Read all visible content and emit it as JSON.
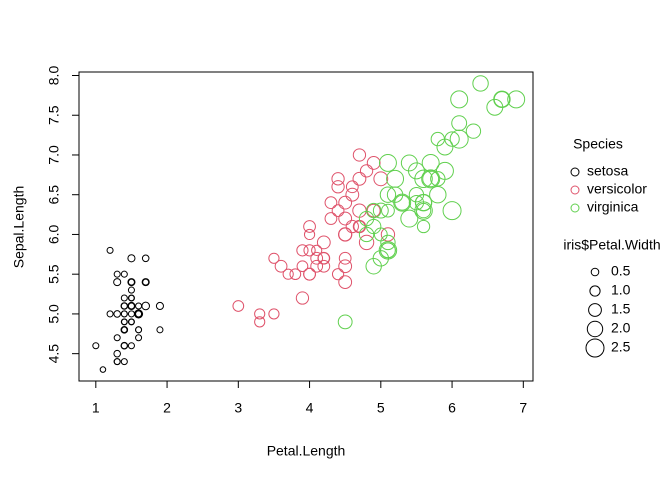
{
  "chart_data": {
    "type": "scatter",
    "x_label": "Petal.Length",
    "y_label": "Sepal.Length",
    "xlim": [
      0.764,
      7.136
    ],
    "ylim": [
      4.156,
      8.044
    ],
    "xticks": [
      1,
      2,
      3,
      4,
      5,
      6,
      7
    ],
    "yticks": [
      4.5,
      {
        "value": 5,
        "label": "5.0"
      },
      5.5,
      {
        "value": 6,
        "label": "6.0"
      },
      6.5,
      {
        "value": 7,
        "label": "7.0"
      },
      7.5,
      {
        "value": 8,
        "label": "8.0"
      }
    ],
    "legend_title": "Species",
    "size_legend_title": "iris$Petal.Width",
    "size_legend": [
      0.5,
      {
        "value": 1,
        "label": "1.0"
      },
      1.5,
      {
        "value": 2,
        "label": "2.0"
      },
      2.5
    ],
    "series": [
      {
        "name": "setosa",
        "color": "#000000",
        "x": [
          1.4,
          1.4,
          1.3,
          1.5,
          1.4,
          1.7,
          1.4,
          1.5,
          1.4,
          1.5,
          1.5,
          1.6,
          1.4,
          1.1,
          1.2,
          1.5,
          1.3,
          1.4,
          1.7,
          1.5,
          1.7,
          1.5,
          1.0,
          1.7,
          1.9,
          1.6,
          1.6,
          1.5,
          1.4,
          1.6,
          1.6,
          1.5,
          1.5,
          1.4,
          1.5,
          1.2,
          1.3,
          1.4,
          1.3,
          1.5,
          1.3,
          1.3,
          1.3,
          1.6,
          1.9,
          1.4,
          1.6,
          1.4,
          1.5,
          1.4
        ],
        "values": [
          5.1,
          4.9,
          4.7,
          4.6,
          5.0,
          5.4,
          4.6,
          5.0,
          4.4,
          4.9,
          5.4,
          4.8,
          4.8,
          4.3,
          5.8,
          5.7,
          5.4,
          5.1,
          5.7,
          5.1,
          5.4,
          5.1,
          4.6,
          5.1,
          4.8,
          5.0,
          5.0,
          5.2,
          5.2,
          4.7,
          4.8,
          5.4,
          5.2,
          5.5,
          4.9,
          5.0,
          5.5,
          4.9,
          4.4,
          5.1,
          5.0,
          4.5,
          4.4,
          5.0,
          5.1,
          4.8,
          5.1,
          4.6,
          5.3,
          5.0
        ],
        "sizes": [
          0.2,
          0.2,
          0.2,
          0.2,
          0.2,
          0.4,
          0.3,
          0.2,
          0.2,
          0.1,
          0.2,
          0.2,
          0.1,
          0.1,
          0.2,
          0.4,
          0.4,
          0.3,
          0.3,
          0.3,
          0.2,
          0.4,
          0.2,
          0.5,
          0.2,
          0.2,
          0.4,
          0.2,
          0.2,
          0.2,
          0.2,
          0.4,
          0.1,
          0.2,
          0.2,
          0.2,
          0.2,
          0.1,
          0.2,
          0.2,
          0.3,
          0.3,
          0.2,
          0.6,
          0.4,
          0.3,
          0.2,
          0.2,
          0.2,
          0.2
        ]
      },
      {
        "name": "versicolor",
        "color": "#DF536B",
        "x": [
          4.7,
          4.5,
          4.9,
          4.0,
          4.6,
          4.5,
          4.7,
          3.3,
          4.6,
          3.9,
          3.5,
          4.2,
          4.0,
          4.7,
          3.6,
          4.4,
          4.5,
          4.1,
          4.5,
          3.9,
          4.8,
          4.0,
          4.9,
          4.7,
          4.3,
          4.4,
          4.8,
          5.0,
          4.5,
          3.5,
          3.8,
          3.7,
          3.9,
          5.1,
          4.5,
          4.5,
          4.7,
          4.4,
          4.1,
          4.0,
          4.4,
          4.6,
          4.0,
          3.3,
          4.2,
          4.2,
          4.2,
          4.3,
          3.0,
          4.1
        ],
        "values": [
          7.0,
          6.4,
          6.9,
          5.5,
          6.5,
          5.7,
          6.3,
          4.9,
          6.6,
          5.2,
          5.0,
          5.9,
          6.0,
          6.1,
          5.6,
          6.7,
          5.6,
          5.8,
          6.2,
          5.6,
          5.9,
          6.1,
          6.3,
          6.1,
          6.4,
          6.6,
          6.8,
          6.7,
          6.0,
          5.7,
          5.5,
          5.5,
          5.8,
          6.0,
          5.4,
          6.0,
          6.7,
          6.3,
          5.6,
          5.5,
          5.5,
          6.1,
          5.8,
          5.0,
          5.6,
          5.7,
          5.7,
          6.2,
          5.1,
          5.7
        ],
        "sizes": [
          1.4,
          1.5,
          1.5,
          1.3,
          1.5,
          1.3,
          1.6,
          1.0,
          1.3,
          1.4,
          1.0,
          1.5,
          1.0,
          1.4,
          1.3,
          1.4,
          1.5,
          1.0,
          1.5,
          1.1,
          1.8,
          1.3,
          1.5,
          1.2,
          1.3,
          1.4,
          1.4,
          1.7,
          1.5,
          1.0,
          1.1,
          1.0,
          1.2,
          1.6,
          1.5,
          1.6,
          1.5,
          1.3,
          1.3,
          1.3,
          1.2,
          1.4,
          1.2,
          1.0,
          1.3,
          1.2,
          1.3,
          1.3,
          1.1,
          1.3
        ]
      },
      {
        "name": "virginica",
        "color": "#61D04F",
        "x": [
          6.0,
          5.1,
          5.9,
          5.6,
          5.8,
          6.6,
          4.5,
          6.3,
          5.8,
          6.1,
          5.1,
          5.3,
          5.5,
          5.0,
          5.1,
          5.3,
          5.5,
          6.7,
          6.9,
          5.0,
          5.7,
          4.9,
          6.7,
          4.9,
          5.7,
          6.0,
          4.8,
          4.9,
          5.6,
          5.8,
          6.1,
          6.4,
          5.6,
          5.1,
          5.6,
          6.1,
          5.6,
          5.5,
          4.8,
          5.4,
          5.6,
          5.1,
          5.1,
          5.9,
          5.7,
          5.2,
          5.0,
          5.2,
          5.4,
          5.1
        ],
        "values": [
          6.3,
          5.8,
          7.1,
          6.3,
          6.5,
          7.6,
          4.9,
          7.3,
          6.7,
          7.2,
          6.5,
          6.4,
          6.8,
          5.7,
          5.8,
          6.4,
          6.5,
          7.7,
          7.7,
          6.0,
          6.9,
          5.6,
          7.7,
          6.3,
          6.7,
          7.2,
          6.2,
          6.1,
          6.4,
          7.2,
          7.4,
          7.9,
          6.4,
          6.3,
          6.1,
          7.7,
          6.3,
          6.4,
          6.0,
          6.9,
          6.7,
          6.9,
          5.8,
          6.8,
          6.7,
          6.7,
          6.3,
          6.5,
          6.2,
          5.9
        ],
        "sizes": [
          2.5,
          1.9,
          2.1,
          1.8,
          2.2,
          2.1,
          1.7,
          1.8,
          1.8,
          2.5,
          2.0,
          1.9,
          2.1,
          2.0,
          2.4,
          2.3,
          1.8,
          2.2,
          2.3,
          1.5,
          2.3,
          2.0,
          2.0,
          1.8,
          2.1,
          1.8,
          1.8,
          1.8,
          2.1,
          1.6,
          1.9,
          2.0,
          2.2,
          1.5,
          1.4,
          2.3,
          2.4,
          1.8,
          1.8,
          2.1,
          2.4,
          2.3,
          1.9,
          2.3,
          2.5,
          2.3,
          1.9,
          2.0,
          2.3,
          1.8
        ]
      }
    ]
  }
}
